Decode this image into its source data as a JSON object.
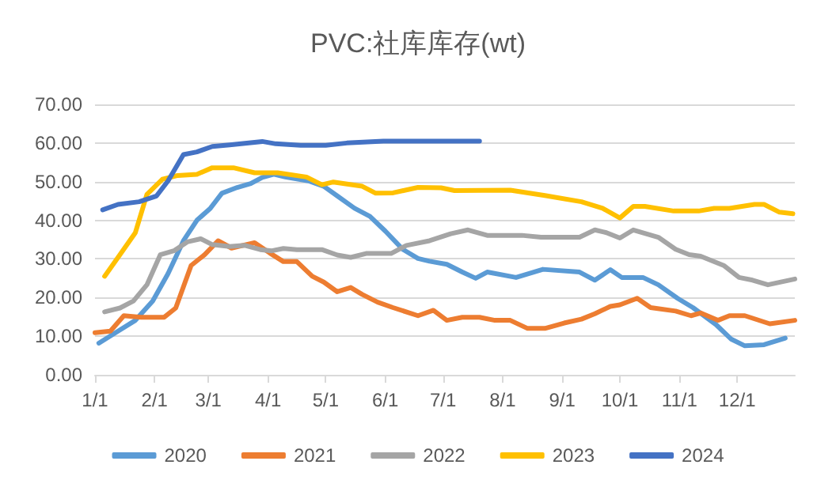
{
  "chart_data": {
    "type": "line",
    "title": "PVC:社库库存(wt)",
    "xlim": [
      "--01-01",
      "--12-31"
    ],
    "xticks": [
      {
        "value": "--01-01",
        "label": "1/1"
      },
      {
        "value": "--02-01",
        "label": "2/1"
      },
      {
        "value": "--03-01",
        "label": "3/1"
      },
      {
        "value": "--04-01",
        "label": "4/1"
      },
      {
        "value": "--05-01",
        "label": "5/1"
      },
      {
        "value": "--06-01",
        "label": "6/1"
      },
      {
        "value": "--07-01",
        "label": "7/1"
      },
      {
        "value": "--08-01",
        "label": "8/1"
      },
      {
        "value": "--09-01",
        "label": "9/1"
      },
      {
        "value": "--10-01",
        "label": "10/1"
      },
      {
        "value": "--11-01",
        "label": "11/1"
      },
      {
        "value": "--12-01",
        "label": "12/1"
      }
    ],
    "ylim": [
      0,
      70
    ],
    "yticks": [
      {
        "value": 0,
        "label": "0.00"
      },
      {
        "value": 10,
        "label": "10.00"
      },
      {
        "value": 20,
        "label": "20.00"
      },
      {
        "value": 30,
        "label": "30.00"
      },
      {
        "value": 40,
        "label": "40.00"
      },
      {
        "value": 50,
        "label": "50.00"
      },
      {
        "value": 60,
        "label": "60.00"
      },
      {
        "value": 70,
        "label": "70.00"
      }
    ],
    "grid": "y",
    "legend": "bottom",
    "marker": "none",
    "line_style": "solid",
    "series": [
      {
        "name": "2020",
        "color": "#5b9bd5",
        "x": [
          "--01-03",
          "--01-13",
          "--01-22",
          "--01-31",
          "--02-08",
          "--02-16",
          "--02-23",
          "--03-02",
          "--03-08",
          "--03-16",
          "--03-23",
          "--03-29",
          "--04-04",
          "--04-10",
          "--04-22",
          "--04-30",
          "--05-07",
          "--05-16",
          "--05-24",
          "--06-01",
          "--06-10",
          "--06-18",
          "--06-24",
          "--07-03",
          "--07-11",
          "--07-18",
          "--07-24",
          "--08-08",
          "--08-22",
          "--09-10",
          "--09-18",
          "--09-26",
          "--10-02",
          "--10-13",
          "--10-21",
          "--10-31",
          "--11-08",
          "--11-20",
          "--11-28",
          "--12-05",
          "--12-15",
          "--12-26"
        ],
        "values": [
          8.2,
          11.3,
          14.1,
          19.1,
          26.2,
          34.7,
          40,
          43.1,
          47,
          48.5,
          49.5,
          51.1,
          51.9,
          51.2,
          50.2,
          48.8,
          46.3,
          43.1,
          41,
          37.2,
          32.5,
          30.1,
          29.4,
          28.6,
          26.6,
          25,
          26.6,
          25.2,
          27.3,
          26.6,
          24.5,
          27.2,
          25.2,
          25.2,
          23.3,
          19.8,
          17.4,
          13,
          9.2,
          7.5,
          7.8,
          9.5
        ]
      },
      {
        "name": "2021",
        "color": "#ed7d31",
        "x": [
          "--01-01",
          "--01-09",
          "--01-16",
          "--01-25",
          "--02-06",
          "--02-12",
          "--02-20",
          "--02-27",
          "--03-06",
          "--03-13",
          "--03-25",
          "--04-02",
          "--04-09",
          "--04-16",
          "--04-24",
          "--04-30",
          "--05-07",
          "--05-14",
          "--05-20",
          "--05-28",
          "--06-05",
          "--06-18",
          "--06-26",
          "--07-03",
          "--07-11",
          "--07-20",
          "--07-28",
          "--08-05",
          "--08-14",
          "--08-23",
          "--09-02",
          "--09-11",
          "--09-18",
          "--09-26",
          "--10-01",
          "--10-10",
          "--10-17",
          "--10-30",
          "--11-07",
          "--11-12",
          "--11-21",
          "--11-27",
          "--12-05",
          "--12-18",
          "--12-31"
        ],
        "values": [
          10.9,
          11.3,
          15.3,
          14.9,
          14.9,
          17.3,
          28.3,
          31.1,
          34.7,
          32.8,
          34.2,
          31.5,
          29.3,
          29.3,
          25.5,
          24,
          21.5,
          22.6,
          20.8,
          18.8,
          17.4,
          15.3,
          16.7,
          14.1,
          14.9,
          14.9,
          14.1,
          14.1,
          12,
          12,
          13.4,
          14.4,
          15.8,
          17.7,
          18.1,
          19.8,
          17.4,
          16.5,
          15.3,
          16,
          14.1,
          15.3,
          15.3,
          13.2,
          14.1
        ]
      },
      {
        "name": "2022",
        "color": "#a5a5a5",
        "x": [
          "--01-06",
          "--01-14",
          "--01-21",
          "--01-28",
          "--02-04",
          "--02-11",
          "--02-18",
          "--02-25",
          "--03-03",
          "--03-12",
          "--03-20",
          "--03-28",
          "--04-03",
          "--04-09",
          "--04-16",
          "--04-29",
          "--05-07",
          "--05-14",
          "--05-22",
          "--06-04",
          "--06-12",
          "--06-24",
          "--07-05",
          "--07-14",
          "--07-24",
          "--08-11",
          "--08-21",
          "--09-10",
          "--09-18",
          "--09-24",
          "--10-01",
          "--10-08",
          "--10-21",
          "--10-30",
          "--11-06",
          "--11-12",
          "--11-24",
          "--12-02",
          "--12-09",
          "--12-17",
          "--12-31"
        ],
        "values": [
          16.3,
          17.3,
          19.1,
          23.3,
          31.1,
          32.1,
          34.4,
          35.2,
          33.7,
          33.2,
          33.5,
          32.4,
          32.1,
          32.7,
          32.4,
          32.4,
          31,
          30.4,
          31.4,
          31.4,
          33.5,
          34.7,
          36.5,
          37.5,
          36.1,
          36.1,
          35.6,
          35.6,
          37.5,
          36.8,
          35.4,
          37.5,
          35.6,
          32.5,
          31.1,
          30.7,
          28.3,
          25.2,
          24.5,
          23.3,
          24.8
        ]
      },
      {
        "name": "2023",
        "color": "#ffc000",
        "x": [
          "--01-06",
          "--01-14",
          "--01-22",
          "--01-28",
          "--02-05",
          "--02-13",
          "--02-23",
          "--03-03",
          "--03-14",
          "--03-25",
          "--04-06",
          "--04-21",
          "--04-29",
          "--05-05",
          "--05-20",
          "--05-27",
          "--06-05",
          "--06-18",
          "--06-30",
          "--07-07",
          "--08-05",
          "--08-23",
          "--09-11",
          "--09-22",
          "--10-01",
          "--10-08",
          "--10-14",
          "--10-29",
          "--11-11",
          "--11-19",
          "--11-27",
          "--12-10",
          "--12-15",
          "--12-23",
          "--12-30"
        ],
        "values": [
          25.5,
          31.1,
          36.8,
          46.7,
          50.6,
          51.6,
          51.9,
          53.6,
          53.6,
          52.3,
          52.3,
          51.2,
          49.2,
          49.9,
          48.8,
          47,
          47.1,
          48.5,
          48.4,
          47.7,
          47.8,
          46.4,
          44.8,
          43.1,
          40.6,
          43.6,
          43.6,
          42.4,
          42.4,
          43.1,
          43.1,
          44.1,
          44.1,
          42.1,
          41.7
        ]
      },
      {
        "name": "2024",
        "color": "#4472c4",
        "x": [
          "--01-05",
          "--01-13",
          "--01-24",
          "--02-02",
          "--02-08",
          "--02-16",
          "--02-23",
          "--03-03",
          "--03-12",
          "--03-29",
          "--04-05",
          "--04-18",
          "--05-01",
          "--05-12",
          "--05-31",
          "--06-24",
          "--07-20"
        ],
        "values": [
          42.7,
          44.1,
          44.8,
          46.3,
          50.2,
          57,
          57.7,
          59.1,
          59.5,
          60.4,
          59.8,
          59.4,
          59.4,
          60,
          60.5,
          60.5,
          60.5
        ]
      }
    ]
  }
}
